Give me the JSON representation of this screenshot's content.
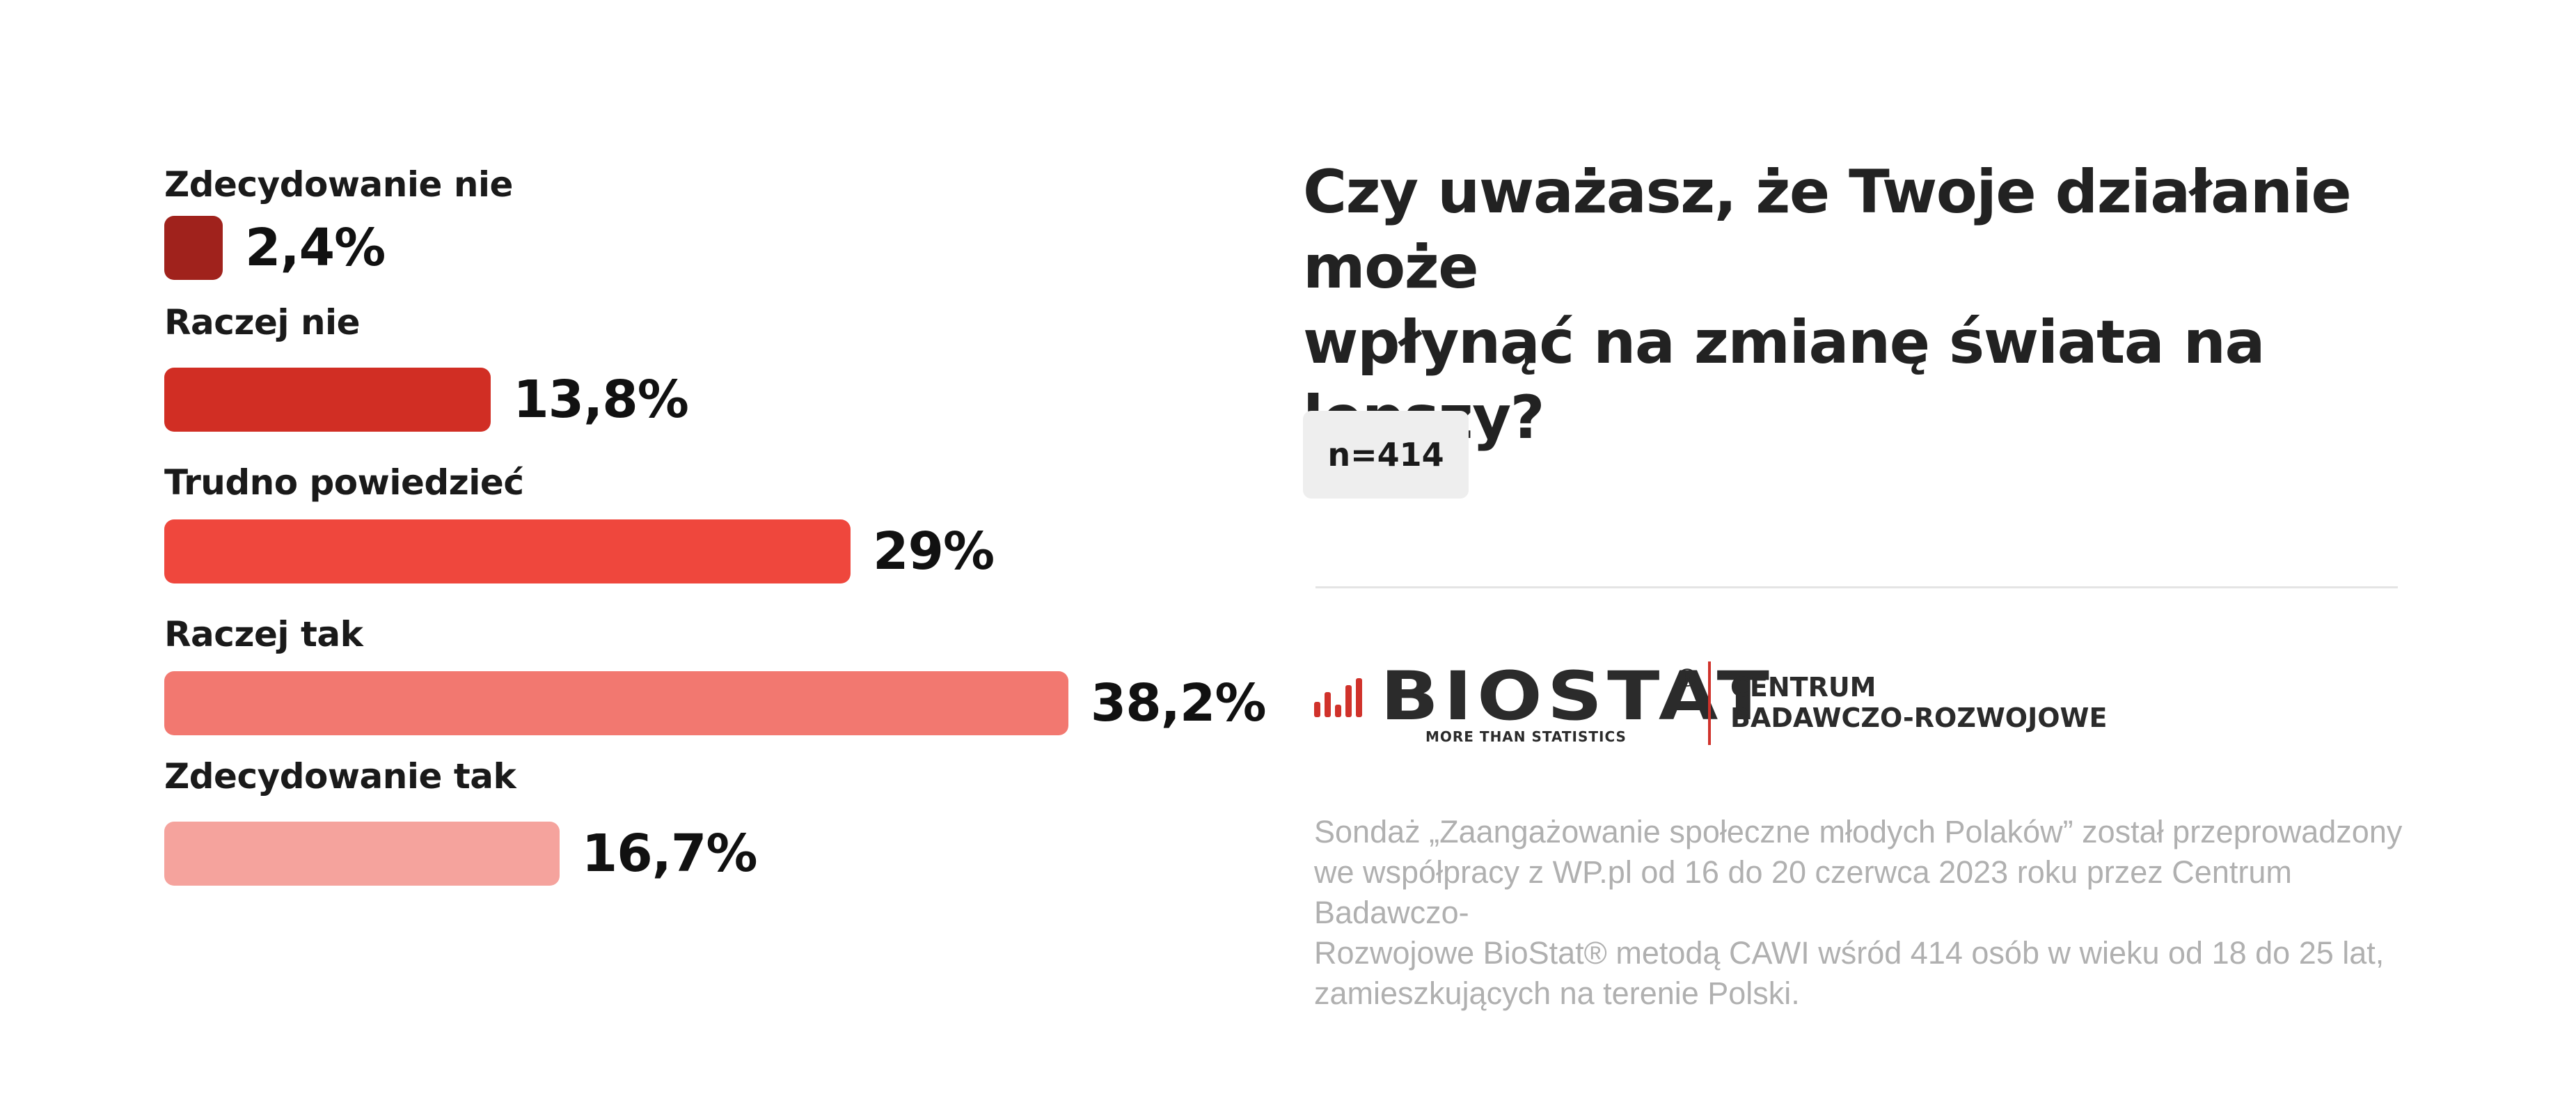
{
  "question": {
    "line1": "Czy uważasz, że Twoje działanie może",
    "line2": "wpłynąć na zmianę świata na lepszy?"
  },
  "sample": "n=414",
  "logo": {
    "icon": "bar-chart-icon",
    "word": "BIOSTAT",
    "registered": "®",
    "tagline": "MORE THAN STATISTICS",
    "center_line1": "CENTRUM",
    "center_line2": "BADAWCZO-ROZWOJOWE"
  },
  "footnote": {
    "line1": "Sondaż  „Zaangażowanie społeczne młodych Polaków” został przeprowadzony",
    "line2": "we współpracy z WP.pl od 16 do 20 czerwca 2023 roku przez Centrum Badawczo-",
    "line3": "Rozwojowe BioStat® metodą CAWI wśród 414 osób w wieku od 18 do 25 lat,",
    "line4": "zamieszkujących na terenie Polski."
  },
  "chart_data": {
    "type": "bar",
    "orientation": "horizontal",
    "categories": [
      "Zdecydowanie nie",
      "Raczej nie",
      "Trudno powiedzieć",
      "Raczej tak",
      "Zdecydowanie tak"
    ],
    "values": [
      2.4,
      13.8,
      29,
      38.2,
      16.7
    ],
    "value_labels": [
      "2,4%",
      "13,8%",
      "29%",
      "38,2%",
      "16,7%"
    ],
    "unit": "%",
    "colors": [
      "#a0221c",
      "#d12e24",
      "#ef473d",
      "#f27870",
      "#f5a39d"
    ]
  }
}
